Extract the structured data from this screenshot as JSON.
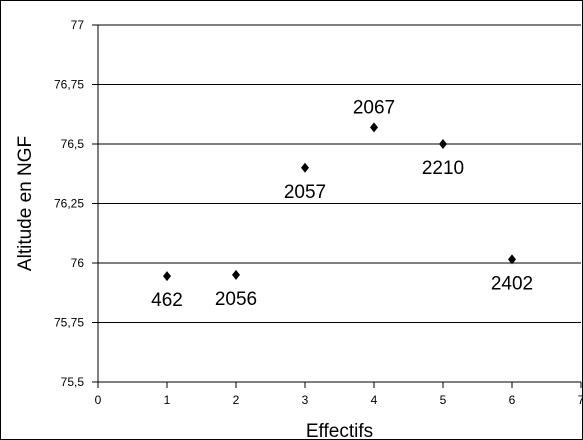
{
  "chart_data": {
    "type": "scatter",
    "xlabel": "Effectifs",
    "ylabel": "Altitude en NGF",
    "xlim": [
      0,
      7
    ],
    "ylim": [
      75.5,
      77
    ],
    "x_ticks": [
      "0",
      "1",
      "2",
      "3",
      "4",
      "5",
      "6",
      "7"
    ],
    "y_ticks": [
      "75,5",
      "75,75",
      "76",
      "76,25",
      "76,5",
      "76,75",
      "77"
    ],
    "grid": "horizontal",
    "marker": "diamond",
    "marker_color": "#000000",
    "points": [
      {
        "x": 1,
        "y": 75.945,
        "label": "462",
        "label_pos": "below"
      },
      {
        "x": 2,
        "y": 75.95,
        "label": "2056",
        "label_pos": "below"
      },
      {
        "x": 3,
        "y": 76.4,
        "label": "2057",
        "label_pos": "below"
      },
      {
        "x": 4,
        "y": 76.57,
        "label": "2067",
        "label_pos": "above"
      },
      {
        "x": 5,
        "y": 76.5,
        "label": "2210",
        "label_pos": "below"
      },
      {
        "x": 6,
        "y": 76.015,
        "label": "2402",
        "label_pos": "below"
      }
    ]
  }
}
